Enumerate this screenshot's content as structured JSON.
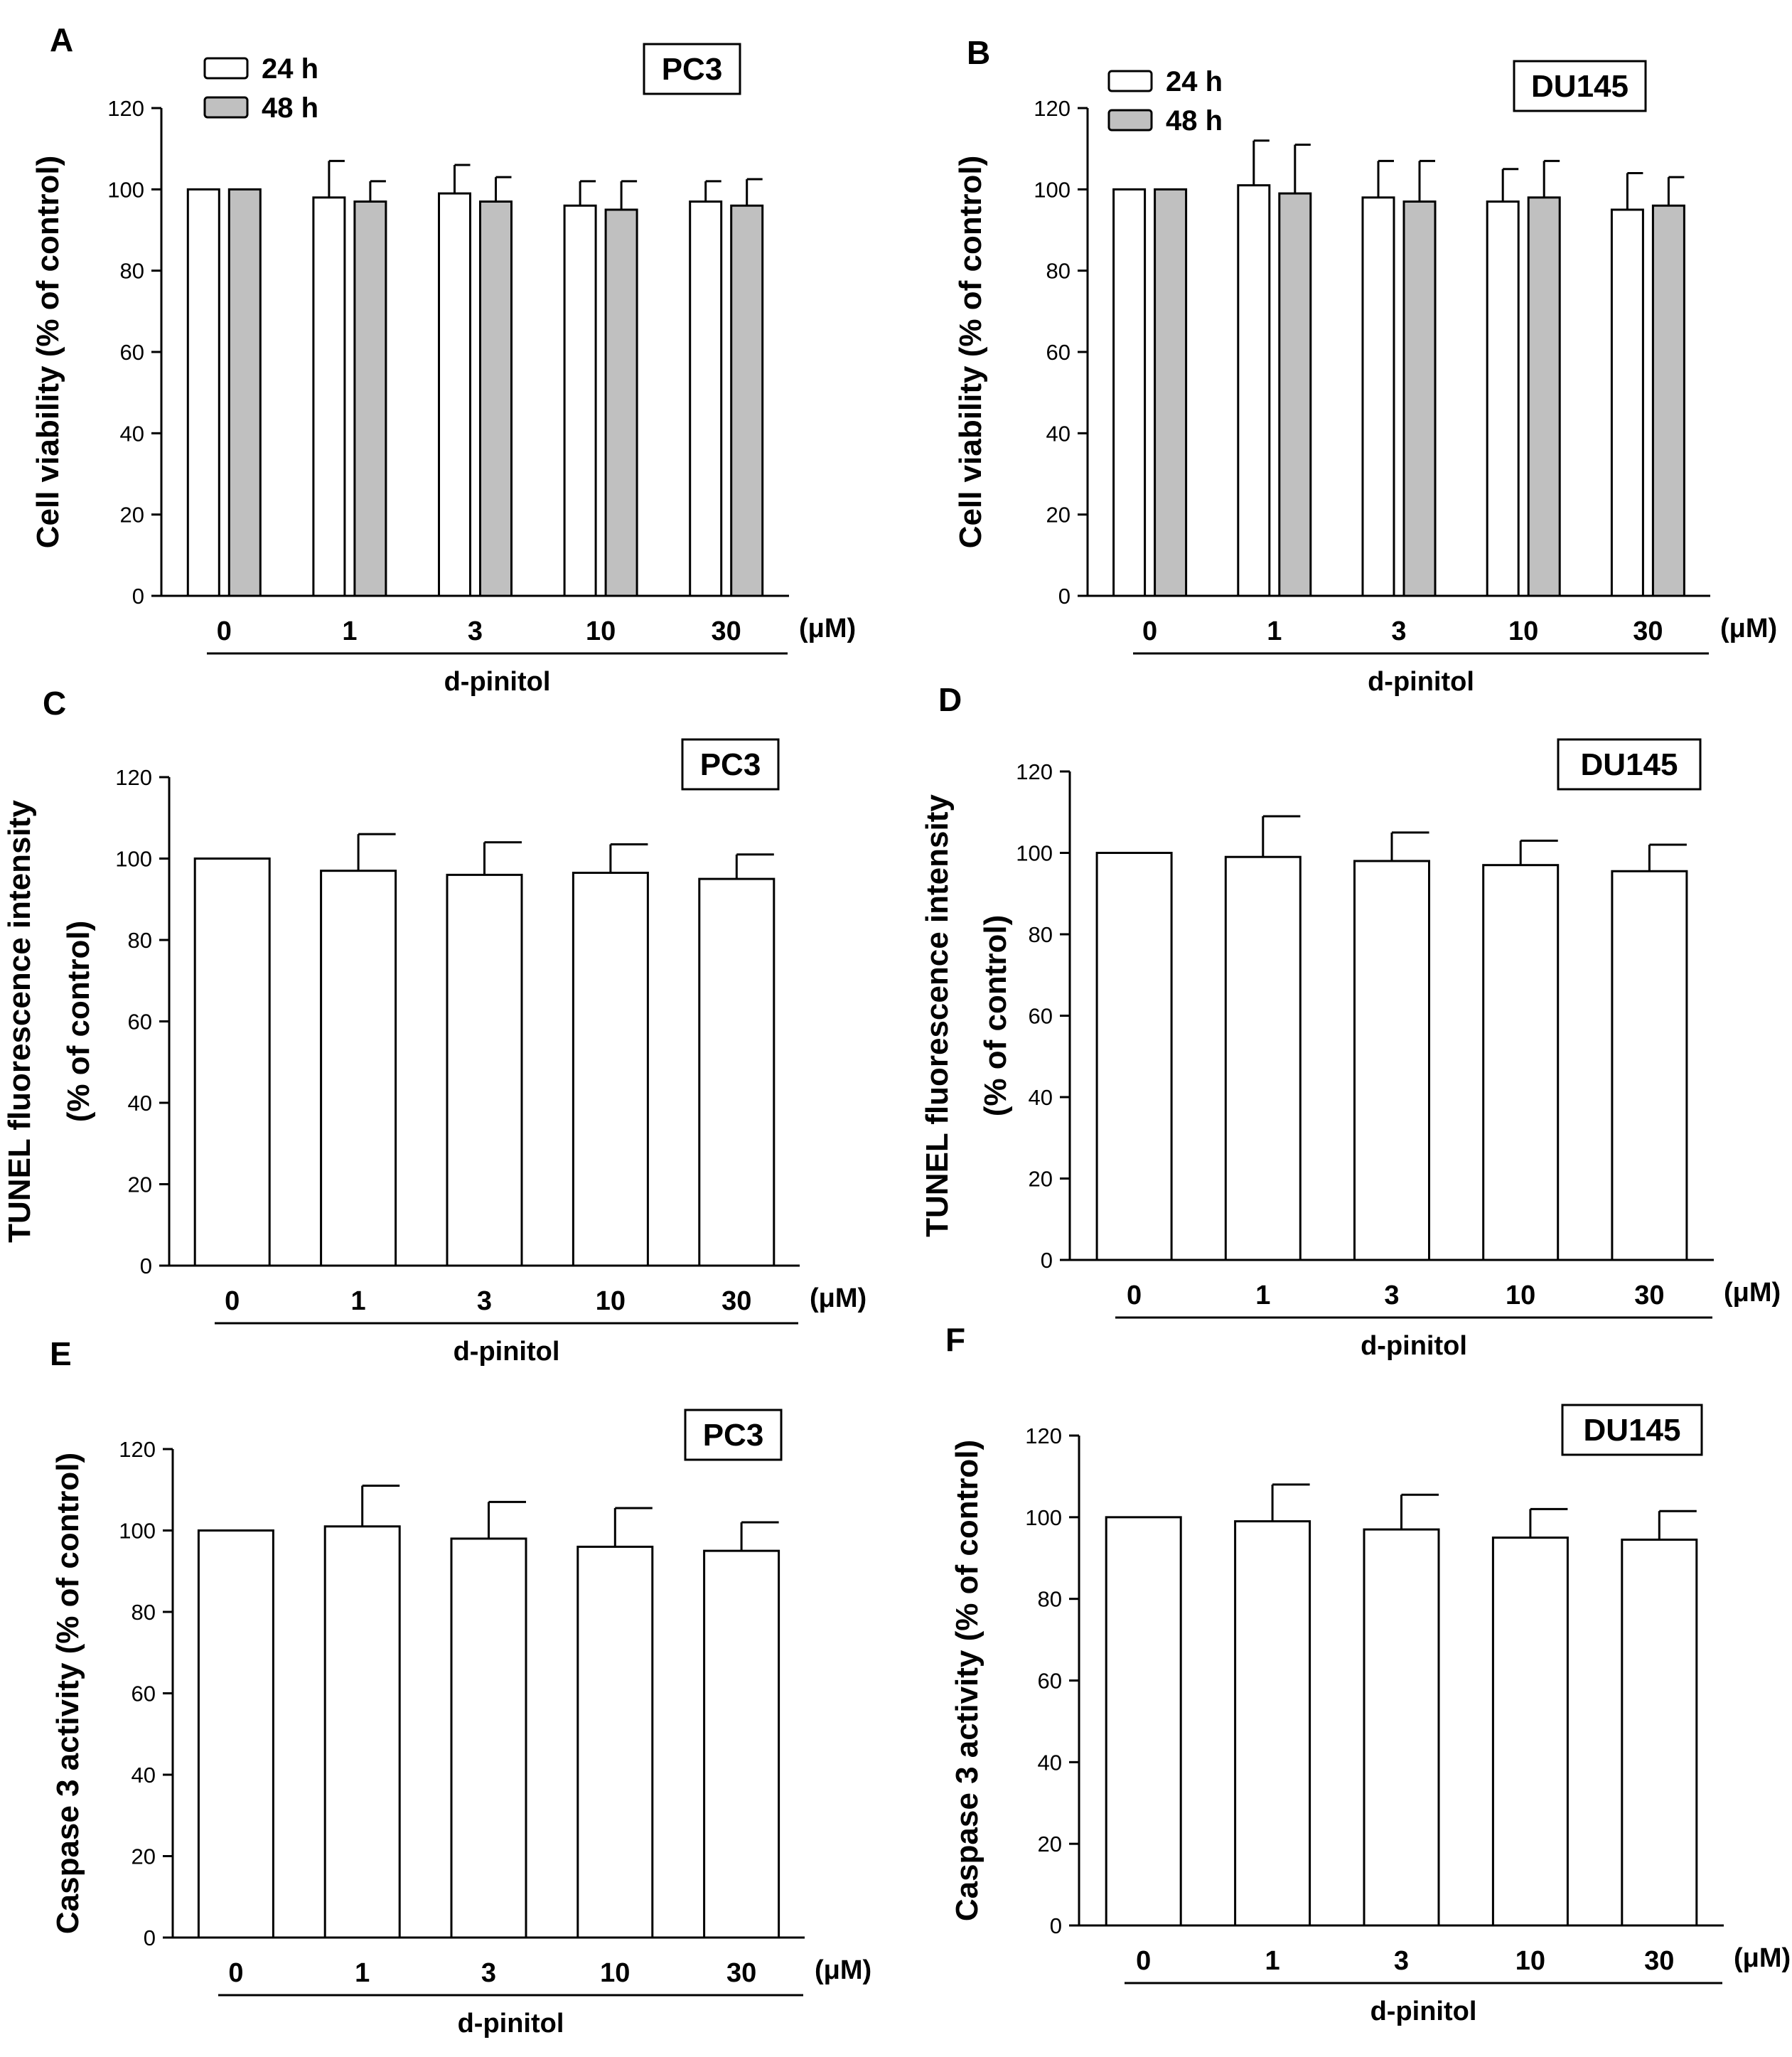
{
  "figure": {
    "unit_label": "(μM)",
    "xgroup_label": "d-pinitol"
  },
  "chart_data": [
    {
      "type": "bar",
      "panel": "A",
      "cell_line": "PC3",
      "ylabel": "Cell viability (% of control)",
      "categories": [
        "0",
        "1",
        "3",
        "10",
        "30"
      ],
      "series": [
        {
          "name": "24 h",
          "values": [
            100,
            98,
            99,
            96,
            97
          ],
          "errors": [
            0,
            9,
            7,
            6,
            5
          ],
          "color": "#ffffff"
        },
        {
          "name": "48 h",
          "values": [
            100,
            97,
            97,
            95,
            96
          ],
          "errors": [
            0,
            5,
            6,
            7,
            6.5
          ],
          "color": "#c0c0c0"
        }
      ],
      "ylim": [
        0,
        120
      ],
      "yticks": [
        0,
        20,
        40,
        60,
        80,
        100,
        120
      ],
      "legend": "top-left"
    },
    {
      "type": "bar",
      "panel": "B",
      "cell_line": "DU145",
      "ylabel": "Cell viability (% of control)",
      "categories": [
        "0",
        "1",
        "3",
        "10",
        "30"
      ],
      "series": [
        {
          "name": "24 h",
          "values": [
            100,
            101,
            98,
            97,
            95
          ],
          "errors": [
            0,
            11,
            9,
            8,
            9
          ],
          "color": "#ffffff"
        },
        {
          "name": "48 h",
          "values": [
            100,
            99,
            97,
            98,
            96
          ],
          "errors": [
            0,
            12,
            10,
            9,
            7
          ],
          "color": "#c0c0c0"
        }
      ],
      "ylim": [
        0,
        120
      ],
      "yticks": [
        0,
        20,
        40,
        60,
        80,
        100,
        120
      ],
      "legend": "top-left"
    },
    {
      "type": "bar",
      "panel": "C",
      "cell_line": "PC3",
      "ylabel": [
        "TUNEL fluorescence intensity",
        "(% of control)"
      ],
      "categories": [
        "0",
        "1",
        "3",
        "10",
        "30"
      ],
      "series": [
        {
          "values": [
            100,
            97,
            96,
            96.5,
            95
          ],
          "errors": [
            0,
            9,
            8,
            7,
            6
          ],
          "color": "#ffffff"
        }
      ],
      "ylim": [
        0,
        120
      ],
      "yticks": [
        0,
        20,
        40,
        60,
        80,
        100,
        120
      ]
    },
    {
      "type": "bar",
      "panel": "D",
      "cell_line": "DU145",
      "ylabel": [
        "TUNEL fluorescence intensity",
        "(% of control)"
      ],
      "categories": [
        "0",
        "1",
        "3",
        "10",
        "30"
      ],
      "series": [
        {
          "values": [
            100,
            99,
            98,
            97,
            95.5
          ],
          "errors": [
            0,
            10,
            7,
            6,
            6.5
          ],
          "color": "#ffffff"
        }
      ],
      "ylim": [
        0,
        120
      ],
      "yticks": [
        0,
        20,
        40,
        60,
        80,
        100,
        120
      ]
    },
    {
      "type": "bar",
      "panel": "E",
      "cell_line": "PC3",
      "ylabel": "Caspase 3 activity (% of control)",
      "categories": [
        "0",
        "1",
        "3",
        "10",
        "30"
      ],
      "series": [
        {
          "values": [
            100,
            101,
            98,
            96,
            95
          ],
          "errors": [
            0,
            10,
            9,
            9.5,
            7
          ],
          "color": "#ffffff"
        }
      ],
      "ylim": [
        0,
        120
      ],
      "yticks": [
        0,
        20,
        40,
        60,
        80,
        100,
        120
      ]
    },
    {
      "type": "bar",
      "panel": "F",
      "cell_line": "DU145",
      "ylabel": "Caspase 3 activity (% of control)",
      "categories": [
        "0",
        "1",
        "3",
        "10",
        "30"
      ],
      "series": [
        {
          "values": [
            100,
            99,
            97,
            95,
            94.5
          ],
          "errors": [
            0,
            9,
            8.5,
            7,
            7
          ],
          "color": "#ffffff"
        }
      ],
      "ylim": [
        0,
        120
      ],
      "yticks": [
        0,
        20,
        40,
        60,
        80,
        100,
        120
      ]
    }
  ]
}
